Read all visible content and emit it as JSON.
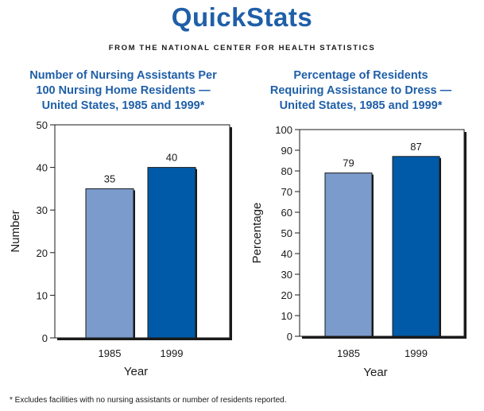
{
  "header": {
    "title": "QuickStats",
    "subtitle": "FROM THE NATIONAL CENTER FOR HEALTH STATISTICS"
  },
  "colors": {
    "title_blue": "#1f5fa8",
    "bar_1985": "#7b9bcc",
    "bar_1999": "#005aa8"
  },
  "chart_data": [
    {
      "type": "bar",
      "title_lines": [
        "Number of Nursing Assistants Per",
        "100 Nursing Home Residents —",
        "United States, 1985 and 1999*"
      ],
      "categories": [
        "1985",
        "1999"
      ],
      "values": [
        35,
        40
      ],
      "value_labels": [
        "35",
        "40"
      ],
      "xlabel": "Year",
      "ylabel": "Number",
      "ylim": [
        0,
        50
      ],
      "yticks": [
        0,
        10,
        20,
        30,
        40,
        50
      ]
    },
    {
      "type": "bar",
      "title_lines": [
        "Percentage of Residents",
        "Requiring Assistance to Dress —",
        "United States, 1985 and 1999*"
      ],
      "categories": [
        "1985",
        "1999"
      ],
      "values": [
        79,
        87
      ],
      "value_labels": [
        "79",
        "87"
      ],
      "xlabel": "Year",
      "ylabel": "Percentage",
      "ylim": [
        0,
        100
      ],
      "yticks": [
        0,
        10,
        20,
        30,
        40,
        50,
        60,
        70,
        80,
        90,
        100
      ]
    }
  ],
  "footnote": "* Excludes facilities with no nursing assistants or number of residents reported."
}
